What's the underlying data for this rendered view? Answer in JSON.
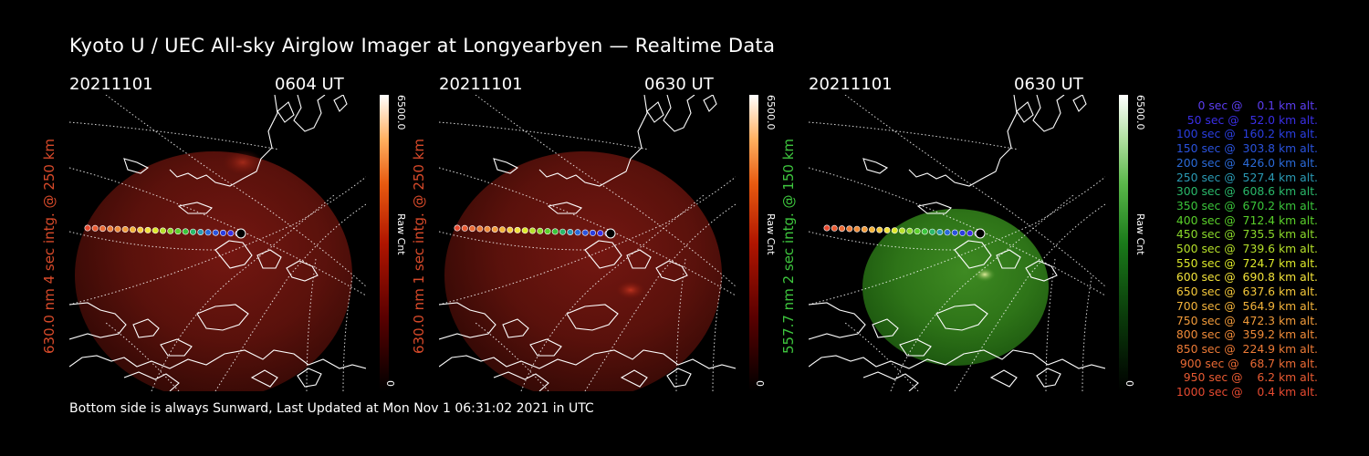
{
  "title": "Kyoto U / UEC All-sky Airglow Imager at Longyearbyen — Realtime Data",
  "footer": "Bottom side is always Sunward, Last Updated at Mon Nov  1 06:31:02 2021 in UTC",
  "colors": {
    "red_label": "#d84a2a",
    "green_label": "#3ec63e",
    "background": "#000000"
  },
  "panels": [
    {
      "date": "20211101",
      "time": "0604 UT",
      "ylabel": "630.0 nm 4 sec intg. @ 250 km",
      "cbar_max": "6500.0",
      "cbar_min": "0",
      "cbar_label": "Raw Cnt",
      "channel": "red"
    },
    {
      "date": "20211101",
      "time": "0630 UT",
      "ylabel": "630.0 nm 1 sec intg. @ 250 km",
      "cbar_max": "6500.0",
      "cbar_min": "0",
      "cbar_label": "Raw Cnt",
      "channel": "red"
    },
    {
      "date": "20211101",
      "time": "0630 UT",
      "ylabel": "557.7 nm 2 sec intg. @ 150 km",
      "cbar_max": "6500.0",
      "cbar_min": "0",
      "cbar_label": "Raw Cnt",
      "channel": "green"
    }
  ],
  "legend": [
    {
      "text": "   0 sec @    0.1 km alt.",
      "color": "#5b3df0"
    },
    {
      "text": "  50 sec @   52.0 km alt.",
      "color": "#3a2ee6"
    },
    {
      "text": " 100 sec @  160.2 km alt.",
      "color": "#2a3ee0"
    },
    {
      "text": " 150 sec @  303.8 km alt.",
      "color": "#2a52dc"
    },
    {
      "text": " 200 sec @  426.0 km alt.",
      "color": "#2a6ad8"
    },
    {
      "text": " 250 sec @  527.4 km alt.",
      "color": "#2a9ab4"
    },
    {
      "text": " 300 sec @  608.6 km alt.",
      "color": "#2ab86a"
    },
    {
      "text": " 350 sec @  670.2 km alt.",
      "color": "#3ac43a"
    },
    {
      "text": " 400 sec @  712.4 km alt.",
      "color": "#5ad02a"
    },
    {
      "text": " 450 sec @  735.5 km alt.",
      "color": "#8ad82a"
    },
    {
      "text": " 500 sec @  739.6 km alt.",
      "color": "#b6e02a"
    },
    {
      "text": " 550 sec @  724.7 km alt.",
      "color": "#dce82a"
    },
    {
      "text": " 600 sec @  690.8 km alt.",
      "color": "#f2e23a"
    },
    {
      "text": " 650 sec @  637.6 km alt.",
      "color": "#f4c83a"
    },
    {
      "text": " 700 sec @  564.9 km alt.",
      "color": "#f2b23a"
    },
    {
      "text": " 750 sec @  472.3 km alt.",
      "color": "#f09a3a"
    },
    {
      "text": " 800 sec @  359.2 km alt.",
      "color": "#ee8a38"
    },
    {
      "text": " 850 sec @  224.9 km alt.",
      "color": "#ec7a36"
    },
    {
      "text": " 900 sec @   68.7 km alt.",
      "color": "#ea6a34"
    },
    {
      "text": " 950 sec @    6.2 km alt.",
      "color": "#e85a32"
    },
    {
      "text": "1000 sec @    0.4 km alt.",
      "color": "#e64a30"
    }
  ]
}
